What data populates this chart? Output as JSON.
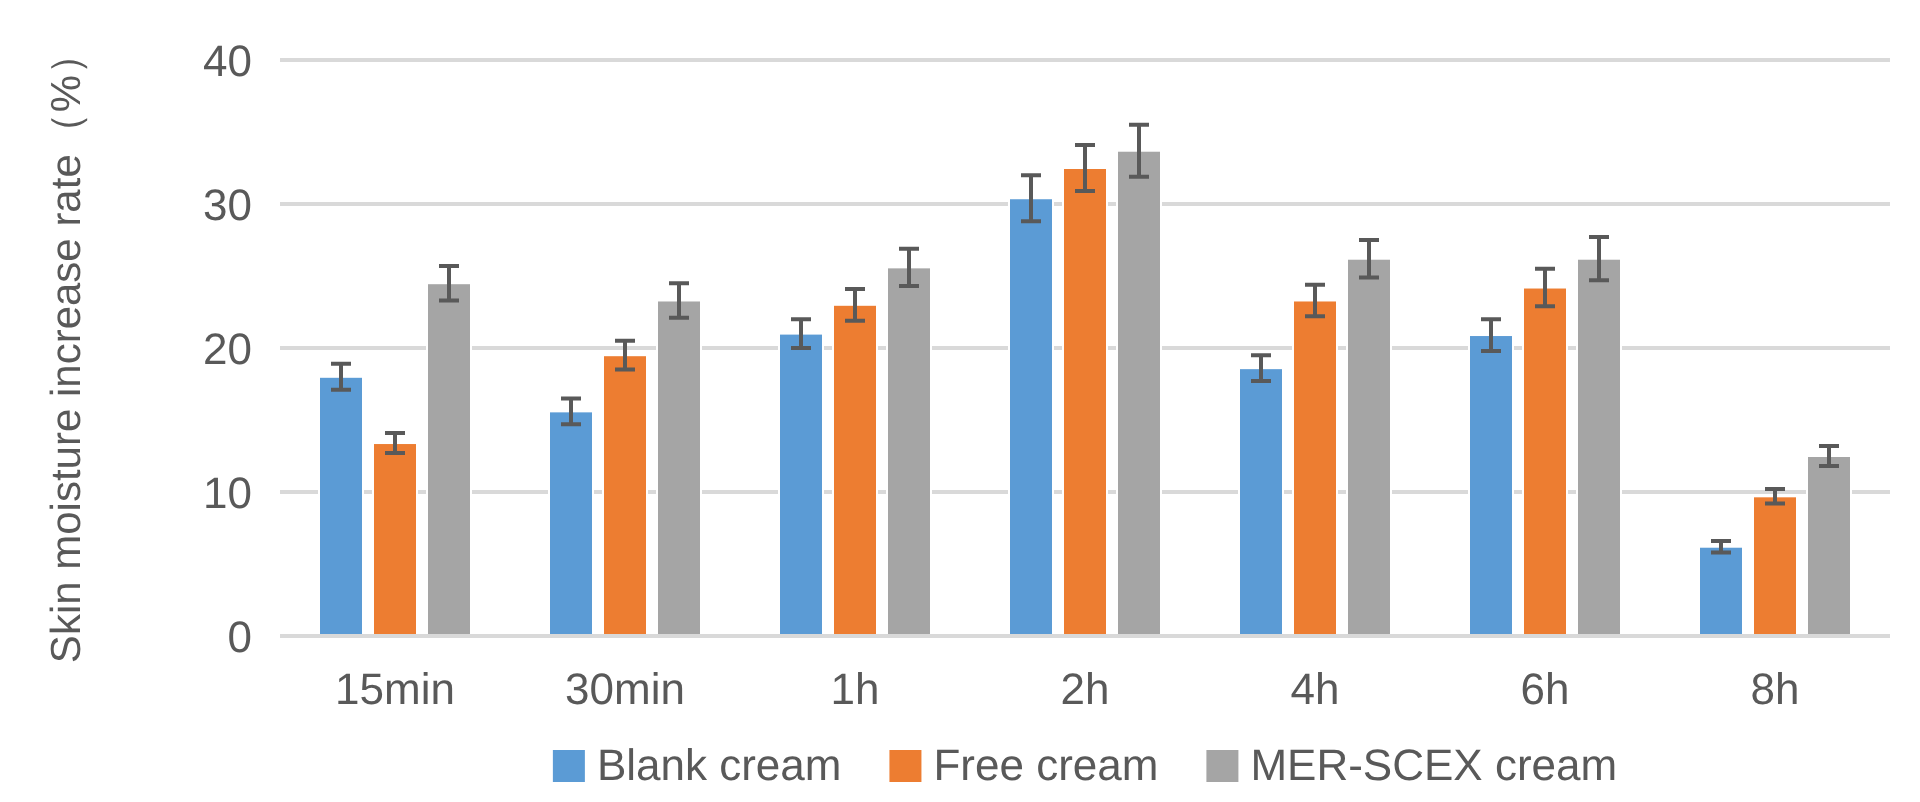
{
  "chart_data": {
    "type": "bar",
    "ylabel": "Skin moisture increase rate（%）",
    "categories": [
      "15min",
      "30min",
      "1h",
      "2h",
      "4h",
      "6h",
      "8h"
    ],
    "series": [
      {
        "name": "Blank cream",
        "color": "#5b9bd5",
        "values": [
          18.0,
          15.6,
          21.0,
          30.4,
          18.6,
          20.9,
          6.2
        ],
        "errors": [
          0.9,
          0.9,
          1.0,
          1.6,
          0.9,
          1.1,
          0.4
        ]
      },
      {
        "name": "Free cream",
        "color": "#ed7d31",
        "values": [
          13.4,
          19.5,
          23.0,
          32.5,
          23.3,
          24.2,
          9.7
        ],
        "errors": [
          0.7,
          1.0,
          1.1,
          1.6,
          1.1,
          1.3,
          0.5
        ]
      },
      {
        "name": "MER-SCEX cream",
        "color": "#a5a5a5",
        "values": [
          24.5,
          23.3,
          25.6,
          33.7,
          26.2,
          26.2,
          12.5
        ],
        "errors": [
          1.2,
          1.2,
          1.3,
          1.8,
          1.3,
          1.5,
          0.7
        ]
      }
    ],
    "ylim": [
      0,
      40
    ],
    "yticks": [
      0,
      10,
      20,
      30,
      40
    ],
    "grid": "y",
    "legend": "bottom"
  }
}
